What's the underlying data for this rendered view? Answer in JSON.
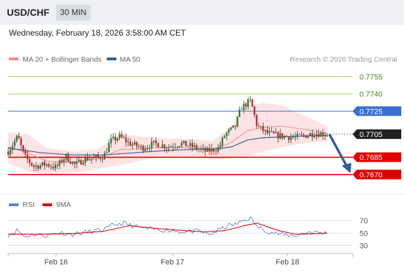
{
  "header": {
    "symbol": "USD/CHF",
    "interval": "30 MIN"
  },
  "timestamp": "Wednesday, February 18, 2026 3:58:00 AM CET",
  "legend": {
    "items": [
      {
        "label": "MA 20 + Bollinger Bands",
        "color": "#f28b8b"
      },
      {
        "label": "MA 50",
        "color": "#2e5c9e"
      }
    ],
    "credit": "Research © 2026 Trading Central"
  },
  "rsi_legend": {
    "items": [
      {
        "label": "RSI",
        "color": "#5b7fd6"
      },
      {
        "label": "9MA",
        "color": "#e00000"
      }
    ]
  },
  "colors": {
    "up": "#2e7d32",
    "down": "#c62828",
    "band_fill": "#fde0e0",
    "resistance": "#9ccc65",
    "pivot": "#3a6fd8",
    "support": "#e00000",
    "arrow": "#2e5c9e"
  },
  "chart_data": [
    {
      "type": "candlestick",
      "ylim": [
        0.7655,
        0.7765
      ],
      "x_ticks": [
        {
          "label": "Feb 16",
          "pos": 0.15
        },
        {
          "label": "Feb 17",
          "pos": 0.515
        },
        {
          "label": "Feb 18",
          "pos": 0.875
        }
      ],
      "levels": [
        {
          "label": "0.7755",
          "value": 0.7755,
          "kind": "resistance"
        },
        {
          "label": "0.7740",
          "value": 0.774,
          "kind": "resistance"
        },
        {
          "label": "0.7725",
          "value": 0.7725,
          "kind": "pivot"
        },
        {
          "label": "0.7705",
          "value": 0.7705,
          "kind": "last"
        },
        {
          "label": "0.7685",
          "value": 0.7685,
          "kind": "support"
        },
        {
          "label": "0.7670",
          "value": 0.767,
          "kind": "support"
        }
      ],
      "price_path": [
        [
          0,
          0.769
        ],
        [
          0.03,
          0.7703
        ],
        [
          0.05,
          0.7686
        ],
        [
          0.08,
          0.7677
        ],
        [
          0.12,
          0.7679
        ],
        [
          0.15,
          0.7676
        ],
        [
          0.18,
          0.7686
        ],
        [
          0.21,
          0.7678
        ],
        [
          0.24,
          0.7684
        ],
        [
          0.27,
          0.7684
        ],
        [
          0.3,
          0.7686
        ],
        [
          0.32,
          0.7699
        ],
        [
          0.35,
          0.7703
        ],
        [
          0.38,
          0.7697
        ],
        [
          0.42,
          0.7693
        ],
        [
          0.46,
          0.7697
        ],
        [
          0.5,
          0.7694
        ],
        [
          0.54,
          0.7697
        ],
        [
          0.58,
          0.7694
        ],
        [
          0.62,
          0.769
        ],
        [
          0.66,
          0.7693
        ],
        [
          0.68,
          0.7705
        ],
        [
          0.71,
          0.7711
        ],
        [
          0.73,
          0.7728
        ],
        [
          0.76,
          0.7734
        ],
        [
          0.78,
          0.7712
        ],
        [
          0.81,
          0.7706
        ],
        [
          0.84,
          0.7704
        ],
        [
          0.87,
          0.7703
        ],
        [
          0.9,
          0.7702
        ],
        [
          0.93,
          0.7704
        ],
        [
          0.96,
          0.7706
        ],
        [
          1.0,
          0.7705
        ]
      ],
      "ma50_path": [
        [
          0,
          0.7693
        ],
        [
          0.1,
          0.7689
        ],
        [
          0.2,
          0.7687
        ],
        [
          0.3,
          0.7687
        ],
        [
          0.4,
          0.7689
        ],
        [
          0.5,
          0.7691
        ],
        [
          0.6,
          0.7692
        ],
        [
          0.65,
          0.7692
        ],
        [
          0.7,
          0.7694
        ],
        [
          0.75,
          0.77
        ],
        [
          0.8,
          0.7702
        ],
        [
          0.88,
          0.7703
        ],
        [
          1.0,
          0.7704
        ]
      ],
      "bb_upper": [
        [
          0,
          0.7707
        ],
        [
          0.06,
          0.7705
        ],
        [
          0.12,
          0.7693
        ],
        [
          0.2,
          0.769
        ],
        [
          0.28,
          0.7692
        ],
        [
          0.35,
          0.7705
        ],
        [
          0.45,
          0.7702
        ],
        [
          0.55,
          0.7701
        ],
        [
          0.64,
          0.7699
        ],
        [
          0.7,
          0.7712
        ],
        [
          0.75,
          0.773
        ],
        [
          0.8,
          0.7732
        ],
        [
          0.86,
          0.773
        ],
        [
          0.92,
          0.7722
        ],
        [
          1.0,
          0.7712
        ]
      ],
      "bb_lower": [
        [
          0,
          0.768
        ],
        [
          0.06,
          0.7673
        ],
        [
          0.12,
          0.767
        ],
        [
          0.2,
          0.7671
        ],
        [
          0.28,
          0.7675
        ],
        [
          0.35,
          0.7678
        ],
        [
          0.45,
          0.7684
        ],
        [
          0.55,
          0.7686
        ],
        [
          0.64,
          0.7683
        ],
        [
          0.7,
          0.7684
        ],
        [
          0.75,
          0.7686
        ],
        [
          0.8,
          0.769
        ],
        [
          0.86,
          0.7694
        ],
        [
          0.92,
          0.7697
        ],
        [
          1.0,
          0.7699
        ]
      ],
      "forecast": {
        "from": 0.7705,
        "to": 0.767
      }
    },
    {
      "type": "line",
      "title": "RSI",
      "ylim": [
        25,
        80
      ],
      "y_ticks": [
        70,
        50,
        30
      ],
      "rsi_path": [
        [
          0,
          47
        ],
        [
          0.03,
          55
        ],
        [
          0.05,
          44
        ],
        [
          0.08,
          48
        ],
        [
          0.12,
          46
        ],
        [
          0.16,
          51
        ],
        [
          0.2,
          48
        ],
        [
          0.25,
          52
        ],
        [
          0.3,
          55
        ],
        [
          0.33,
          63
        ],
        [
          0.36,
          66
        ],
        [
          0.4,
          60
        ],
        [
          0.45,
          56
        ],
        [
          0.5,
          55
        ],
        [
          0.55,
          52
        ],
        [
          0.6,
          53
        ],
        [
          0.63,
          47
        ],
        [
          0.66,
          55
        ],
        [
          0.69,
          62
        ],
        [
          0.72,
          65
        ],
        [
          0.74,
          72
        ],
        [
          0.76,
          74
        ],
        [
          0.78,
          60
        ],
        [
          0.82,
          52
        ],
        [
          0.86,
          47
        ],
        [
          0.9,
          46
        ],
        [
          0.94,
          52
        ],
        [
          1.0,
          50
        ]
      ],
      "ma9_path": [
        [
          0,
          48
        ],
        [
          0.1,
          48
        ],
        [
          0.2,
          49
        ],
        [
          0.3,
          53
        ],
        [
          0.38,
          62
        ],
        [
          0.45,
          58
        ],
        [
          0.55,
          54
        ],
        [
          0.62,
          52
        ],
        [
          0.68,
          54
        ],
        [
          0.74,
          62
        ],
        [
          0.78,
          66
        ],
        [
          0.84,
          55
        ],
        [
          0.9,
          48
        ],
        [
          0.96,
          49
        ],
        [
          1.0,
          50
        ]
      ]
    }
  ]
}
